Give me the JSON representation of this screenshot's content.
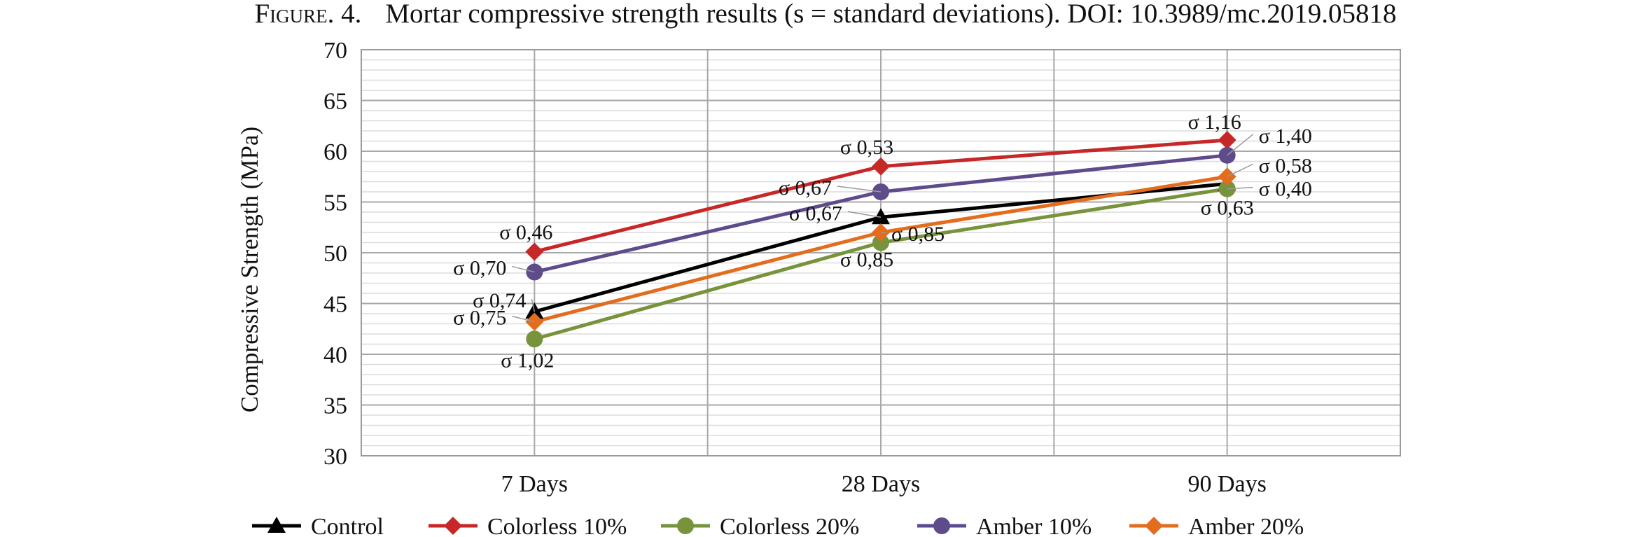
{
  "caption": {
    "figure_label": "Figure. 4.",
    "text": "Mortar compressive strength results (s = standard deviations). DOI: 10.3989/mc.2019.05818"
  },
  "chart_data": {
    "type": "line",
    "title": "",
    "xlabel": "",
    "ylabel": "Compressive  Strength  (MPa)",
    "categories": [
      "7 Days",
      "28 Days",
      "90 Days"
    ],
    "ylim": [
      30,
      70
    ],
    "yticks": [
      30,
      35,
      40,
      45,
      50,
      55,
      60,
      65,
      70
    ],
    "grid": "major and minor horizontal, vertical at category boundaries",
    "legend_position": "bottom",
    "series": [
      {
        "name": "Control",
        "color": "#000000",
        "marker": "triangle",
        "values": [
          44.2,
          53.5,
          56.8
        ],
        "sd_labels": [
          "σ 0,74",
          "σ 0,67",
          "σ 0,63"
        ]
      },
      {
        "name": "Colorless 10%",
        "color": "#c62828",
        "marker": "diamond",
        "values": [
          50.1,
          58.5,
          61.1
        ],
        "sd_labels": [
          "σ 0,46",
          "σ 0,53",
          "σ 1,16"
        ]
      },
      {
        "name": "Colorless 20%",
        "color": "#77933c",
        "marker": "circle",
        "values": [
          41.5,
          51.0,
          56.3
        ],
        "sd_labels": [
          "σ 1,02",
          "σ 0,85",
          "σ 0,40"
        ]
      },
      {
        "name": "Amber 10%",
        "color": "#5e4b8b",
        "marker": "circle",
        "values": [
          48.1,
          56.0,
          59.6
        ],
        "sd_labels": [
          "σ 0,70",
          "σ 0,67",
          "σ 1,40"
        ]
      },
      {
        "name": "Amber 20%",
        "color": "#e36c1d",
        "marker": "diamond",
        "values": [
          43.2,
          52.0,
          57.5
        ],
        "sd_labels": [
          "σ 0,75",
          "σ 0,85",
          "σ 0,58"
        ]
      }
    ]
  }
}
